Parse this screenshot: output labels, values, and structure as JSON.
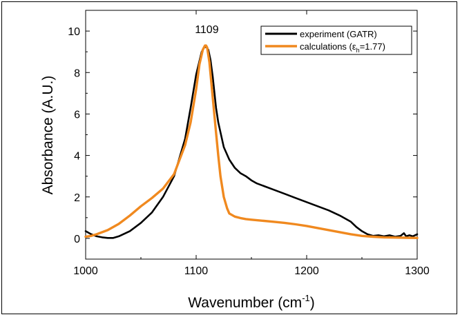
{
  "chart_data": {
    "type": "line",
    "xlabel": "Wavenumber (cm",
    "xlabel_sup": "-1",
    "xlabel_tail": ")",
    "ylabel": "Absorbance (A.U.)",
    "xlim": [
      1000,
      1300
    ],
    "ylim": [
      -1,
      11
    ],
    "x_ticks": [
      1000,
      1100,
      1200,
      1300
    ],
    "y_ticks": [
      0,
      2,
      4,
      6,
      8,
      10
    ],
    "grid": false,
    "legend_position": "top-right",
    "annotations": [
      {
        "text": "1109",
        "x": 1109,
        "y": 9.9
      }
    ],
    "series": [
      {
        "name": "experiment (GATR)",
        "color": "#000000",
        "x": [
          1000,
          1005,
          1010,
          1015,
          1020,
          1025,
          1030,
          1040,
          1050,
          1060,
          1070,
          1080,
          1090,
          1095,
          1100,
          1105,
          1107,
          1109,
          1111,
          1113,
          1115,
          1118,
          1120,
          1125,
          1130,
          1135,
          1140,
          1145,
          1150,
          1155,
          1160,
          1170,
          1180,
          1190,
          1200,
          1210,
          1220,
          1230,
          1240,
          1245,
          1250,
          1255,
          1260,
          1265,
          1270,
          1275,
          1280,
          1285,
          1288,
          1290,
          1293,
          1296,
          1300
        ],
        "y": [
          0.35,
          0.2,
          0.1,
          0.05,
          0.02,
          0.02,
          0.1,
          0.35,
          0.75,
          1.25,
          2.0,
          3.0,
          4.8,
          6.3,
          7.9,
          9.0,
          9.2,
          9.25,
          9.1,
          8.6,
          7.8,
          6.3,
          5.6,
          4.4,
          3.8,
          3.4,
          3.15,
          3.0,
          2.8,
          2.65,
          2.55,
          2.35,
          2.15,
          1.95,
          1.75,
          1.55,
          1.35,
          1.1,
          0.8,
          0.55,
          0.35,
          0.2,
          0.12,
          0.15,
          0.1,
          0.15,
          0.08,
          0.12,
          0.25,
          0.1,
          0.15,
          0.1,
          0.2
        ]
      },
      {
        "name": "calculations (ε",
        "name_sub": "h",
        "name_tail": "=1.77)",
        "color": "#f0891f",
        "x": [
          1000,
          1005,
          1010,
          1020,
          1030,
          1040,
          1050,
          1060,
          1070,
          1080,
          1090,
          1095,
          1100,
          1103,
          1106,
          1108,
          1109,
          1110,
          1112,
          1115,
          1118,
          1120,
          1122,
          1125,
          1128,
          1130,
          1135,
          1140,
          1145,
          1150,
          1160,
          1170,
          1180,
          1190,
          1200,
          1210,
          1220,
          1230,
          1240,
          1250,
          1260,
          1270,
          1280,
          1290,
          1300
        ],
        "y": [
          0.08,
          0.12,
          0.2,
          0.4,
          0.7,
          1.1,
          1.55,
          1.95,
          2.4,
          3.1,
          4.5,
          5.6,
          7.2,
          8.4,
          9.1,
          9.3,
          9.3,
          9.2,
          8.5,
          6.8,
          5.1,
          4.0,
          3.0,
          2.0,
          1.45,
          1.2,
          1.05,
          0.98,
          0.93,
          0.9,
          0.85,
          0.8,
          0.75,
          0.68,
          0.6,
          0.5,
          0.4,
          0.3,
          0.2,
          0.12,
          0.08,
          0.05,
          0.04,
          0.03,
          0.02
        ]
      }
    ]
  }
}
